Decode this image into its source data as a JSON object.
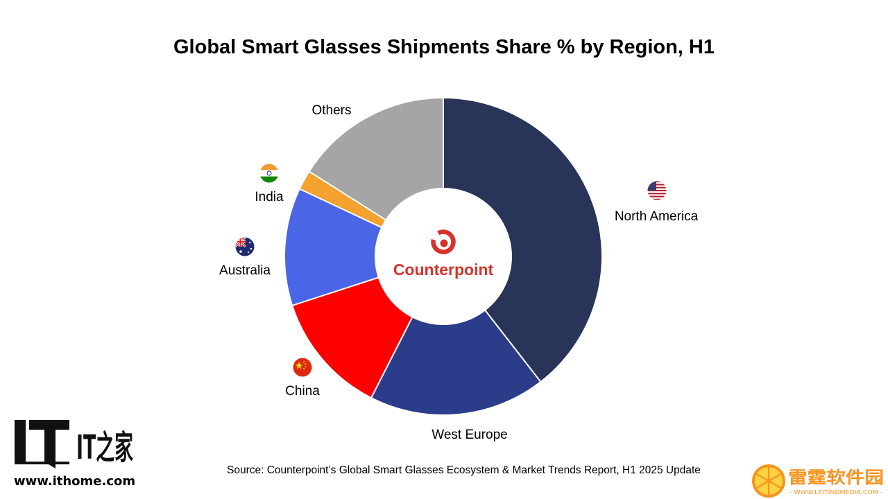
{
  "chart_data": {
    "type": "pie",
    "title": "Global Smart Glasses Shipments Share % by Region, H1",
    "slices": [
      {
        "label": "North America",
        "value": 39.5,
        "color": "#293459"
      },
      {
        "label": "West Europe",
        "value": 18.0,
        "color": "#2b3c8a"
      },
      {
        "label": "China",
        "value": 12.5,
        "color": "#ff0000"
      },
      {
        "label": "Australia",
        "value": 12.0,
        "color": "#4a66e6"
      },
      {
        "label": "India",
        "value": 2.0,
        "color": "#f4a12f"
      },
      {
        "label": "Others",
        "value": 16.0,
        "color": "#a5a5a5"
      }
    ],
    "center_logo_text": "Counterpoint",
    "source": "Source: Counterpoint’s Global Smart Glasses Ecosystem & Market Trends Report, H1 2025 Update"
  },
  "flags": {
    "North America": "us-flag-icon",
    "China": "china-flag-icon",
    "Australia": "australia-flag-icon",
    "India": "india-flag-icon"
  },
  "watermarks": {
    "ithome_logo": "IT之家",
    "ithome_url": "www.ithome.com",
    "leiting_logo": "雷霆软件园",
    "leiting_url": "- WWW.LEITINGMEDIA.COM -"
  },
  "colors": {
    "brand_red": "#d8312b"
  }
}
